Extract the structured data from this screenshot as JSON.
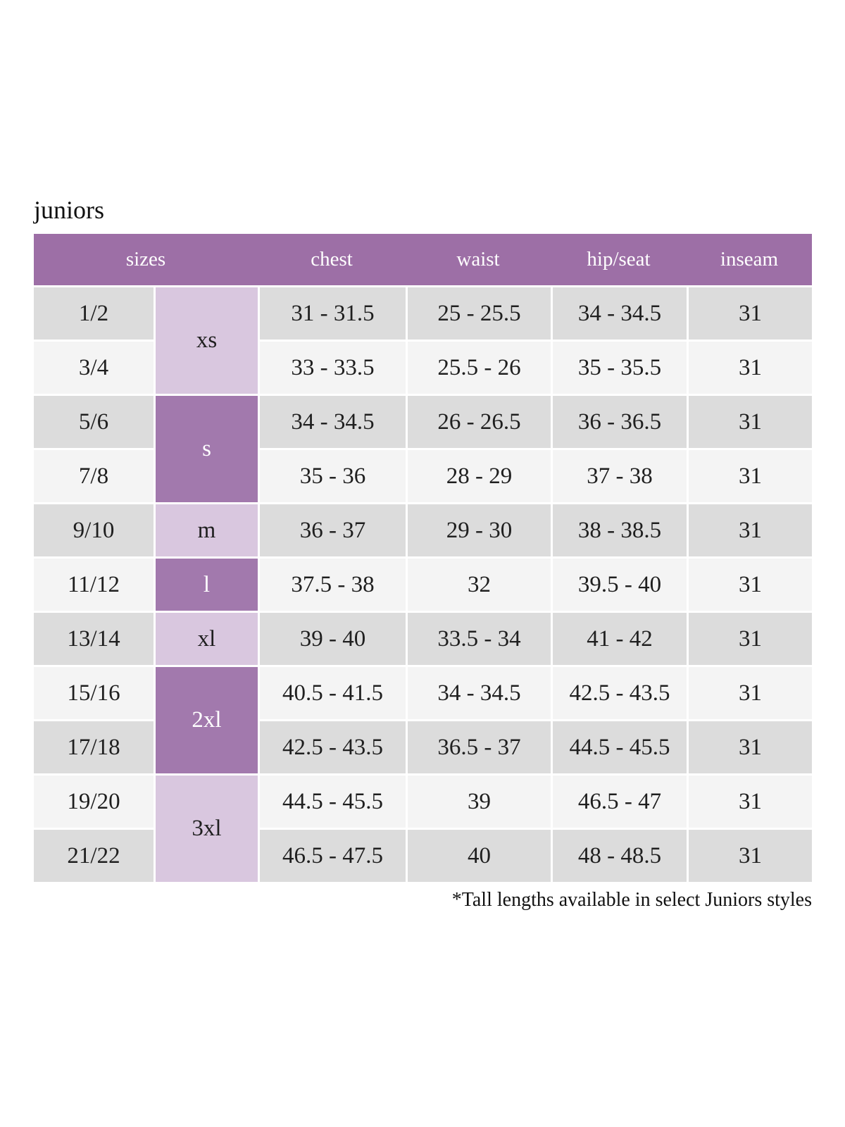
{
  "colors": {
    "header_bg": "#9d6fa6",
    "letter_dark_bg": "#a279ad",
    "letter_light_bg": "#d9c7df",
    "row_gray": "#dcdcdc",
    "row_light": "#f4f4f4",
    "text_dark": "#1f1f1f",
    "text_light": "#ffffff"
  },
  "chart_data": {
    "type": "table",
    "title": "juniors",
    "header": {
      "sizes": "sizes",
      "chest": "chest",
      "waist": "waist",
      "hip_seat": "hip/seat",
      "inseam": "inseam"
    },
    "letter_groups": [
      {
        "label": "xs",
        "tone": "light",
        "rows": [
          "1/2",
          "3/4"
        ]
      },
      {
        "label": "s",
        "tone": "dark",
        "rows": [
          "5/6",
          "7/8"
        ]
      },
      {
        "label": "m",
        "tone": "light",
        "rows": [
          "9/10"
        ]
      },
      {
        "label": "l",
        "tone": "dark",
        "rows": [
          "11/12"
        ]
      },
      {
        "label": "xl",
        "tone": "light",
        "rows": [
          "13/14"
        ]
      },
      {
        "label": "2xl",
        "tone": "dark",
        "rows": [
          "15/16",
          "17/18"
        ]
      },
      {
        "label": "3xl",
        "tone": "light",
        "rows": [
          "19/20",
          "21/22"
        ]
      }
    ],
    "rows": [
      {
        "size": "1/2",
        "letter": "xs",
        "chest": "31 - 31.5",
        "waist": "25 - 25.5",
        "hip_seat": "34 - 34.5",
        "inseam": "31"
      },
      {
        "size": "3/4",
        "letter": "xs",
        "chest": "33 - 33.5",
        "waist": "25.5 - 26",
        "hip_seat": "35 - 35.5",
        "inseam": "31"
      },
      {
        "size": "5/6",
        "letter": "s",
        "chest": "34 - 34.5",
        "waist": "26 - 26.5",
        "hip_seat": "36 - 36.5",
        "inseam": "31"
      },
      {
        "size": "7/8",
        "letter": "s",
        "chest": "35 - 36",
        "waist": "28 - 29",
        "hip_seat": "37 - 38",
        "inseam": "31"
      },
      {
        "size": "9/10",
        "letter": "m",
        "chest": "36 - 37",
        "waist": "29 - 30",
        "hip_seat": "38 - 38.5",
        "inseam": "31"
      },
      {
        "size": "11/12",
        "letter": "l",
        "chest": "37.5 - 38",
        "waist": "32",
        "hip_seat": "39.5 - 40",
        "inseam": "31"
      },
      {
        "size": "13/14",
        "letter": "xl",
        "chest": "39 - 40",
        "waist": "33.5 - 34",
        "hip_seat": "41 - 42",
        "inseam": "31"
      },
      {
        "size": "15/16",
        "letter": "2xl",
        "chest": "40.5 - 41.5",
        "waist": "34 - 34.5",
        "hip_seat": "42.5 - 43.5",
        "inseam": "31"
      },
      {
        "size": "17/18",
        "letter": "2xl",
        "chest": "42.5 - 43.5",
        "waist": "36.5 - 37",
        "hip_seat": "44.5 - 45.5",
        "inseam": "31"
      },
      {
        "size": "19/20",
        "letter": "3xl",
        "chest": "44.5 - 45.5",
        "waist": "39",
        "hip_seat": "46.5 - 47",
        "inseam": "31"
      },
      {
        "size": "21/22",
        "letter": "3xl",
        "chest": "46.5 - 47.5",
        "waist": "40",
        "hip_seat": "48 - 48.5",
        "inseam": "31"
      }
    ],
    "footnote": "*Tall lengths available in select Juniors styles"
  }
}
